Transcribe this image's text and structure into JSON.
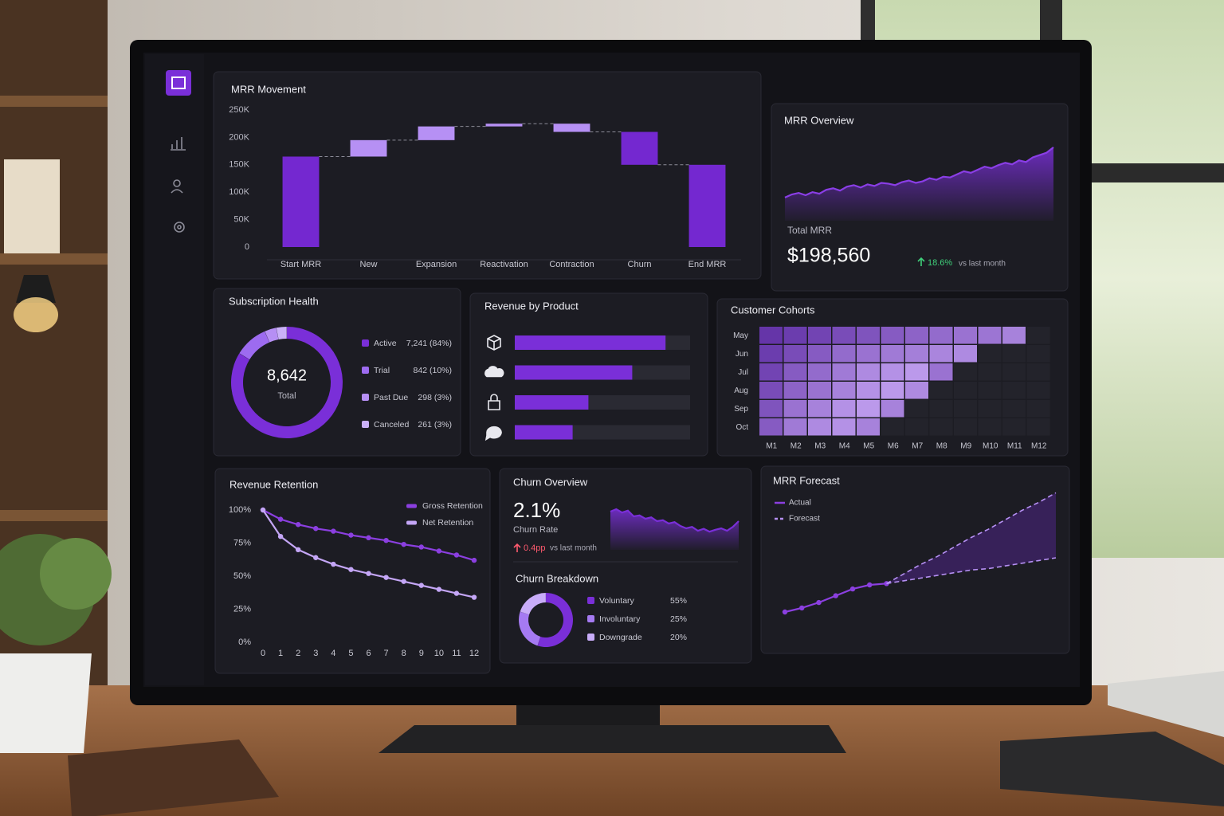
{
  "chart_data": [
    {
      "type": "waterfall",
      "title": "MRR Movement",
      "categories": [
        "Start MRR",
        "New",
        "Expansion",
        "Reactivation",
        "Contraction",
        "Churn",
        "End MRR"
      ],
      "values": [
        165000,
        30000,
        25000,
        5000,
        -15000,
        -60000,
        150000
      ],
      "colors": [
        "#7428d0",
        "#b690f4",
        "#b690f4",
        "#b690f4",
        "#b690f4",
        "#7428d0",
        "#7428d0"
      ],
      "ylim": [
        0,
        250000
      ],
      "yticks": [
        {
          "value": 0,
          "label": "0"
        },
        {
          "value": 50000,
          "label": "50K"
        },
        {
          "value": 100000,
          "label": "100K"
        },
        {
          "value": 150000,
          "label": "150K"
        },
        {
          "value": 200000,
          "label": "200K"
        },
        {
          "value": 250000,
          "label": "250K"
        }
      ]
    },
    {
      "type": "area",
      "title": "MRR Overview",
      "color": "#8a3ee6",
      "values": [
        30,
        34,
        36,
        33,
        37,
        35,
        40,
        42,
        39,
        44,
        46,
        43,
        47,
        45,
        49,
        48,
        46,
        50,
        52,
        49,
        51,
        55,
        53,
        57,
        56,
        60,
        64,
        62,
        66,
        70,
        68,
        72,
        75,
        73,
        78,
        76,
        82,
        85,
        88,
        95
      ],
      "ylim": [
        0,
        100
      ],
      "kpi_label": "Total MRR",
      "kpi": "$198,560",
      "change": "18.6%",
      "change_note": "vs last month"
    },
    {
      "type": "donut",
      "title": "Subscription Health",
      "categories": [
        "Active",
        "Trial",
        "Past Due",
        "Canceled"
      ],
      "values": [
        7241,
        842,
        298,
        261
      ],
      "value_labels": [
        "7,241 (84%)",
        "842 (10%)",
        "298 (3%)",
        "261 (3%)"
      ],
      "colors": [
        "#7a2fd8",
        "#9d6bf0",
        "#b68ff4",
        "#cab1f8"
      ],
      "kpi": "8,642",
      "kpi_label": "Total"
    },
    {
      "type": "hbar",
      "title": "Revenue by Product",
      "color": "#7a2fd8",
      "values": [
        86,
        67,
        42,
        33
      ],
      "xlim": [
        0,
        100
      ]
    },
    {
      "type": "heatmap",
      "title": "Customer Cohorts",
      "rows": [
        "May",
        "Jun",
        "Jul",
        "Aug",
        "Sep",
        "Oct"
      ],
      "columns": [
        "M1",
        "M2",
        "M3",
        "M4",
        "M5",
        "M6",
        "M7",
        "M8",
        "M9",
        "M10",
        "M11",
        "M12"
      ],
      "values": [
        [
          20,
          25,
          30,
          35,
          40,
          45,
          50,
          55,
          60,
          62,
          70,
          null
        ],
        [
          25,
          35,
          45,
          55,
          60,
          65,
          68,
          72,
          75,
          null,
          null,
          null
        ],
        [
          30,
          45,
          55,
          65,
          75,
          80,
          85,
          60,
          null,
          null,
          null,
          null
        ],
        [
          35,
          50,
          60,
          70,
          80,
          85,
          75,
          null,
          null,
          null,
          null,
          null
        ],
        [
          40,
          60,
          70,
          80,
          85,
          70,
          null,
          null,
          null,
          null,
          null,
          null
        ],
        [
          45,
          65,
          75,
          80,
          70,
          null,
          null,
          null,
          null,
          null,
          null,
          null
        ]
      ],
      "zlim": [
        0,
        100
      ],
      "colors": [
        "#4a1694",
        "#cfb0fa"
      ]
    },
    {
      "type": "line",
      "title": "Revenue Retention",
      "x": [
        0,
        1,
        2,
        3,
        4,
        5,
        6,
        7,
        8,
        9,
        10,
        11,
        12
      ],
      "series": [
        {
          "name": "Gross Retention",
          "color": "#8b3fe0",
          "values": [
            100,
            93,
            89,
            86,
            84,
            81,
            79,
            77,
            74,
            72,
            69,
            66,
            62
          ]
        },
        {
          "name": "Net Retention",
          "color": "#c4a6f6",
          "values": [
            100,
            80,
            70,
            64,
            59,
            55,
            52,
            49,
            46,
            43,
            40,
            37,
            34
          ]
        }
      ],
      "xlim": [
        0,
        12
      ],
      "xticks": [
        0,
        1,
        2,
        3,
        4,
        5,
        6,
        7,
        8,
        9,
        10,
        11,
        12
      ],
      "ylim": [
        0,
        100
      ],
      "yticks": [
        {
          "value": 0,
          "label": "0%"
        },
        {
          "value": 25,
          "label": "25%"
        },
        {
          "value": 50,
          "label": "50%"
        },
        {
          "value": 75,
          "label": "75%"
        },
        {
          "value": 100,
          "label": "100%"
        }
      ]
    },
    {
      "type": "area",
      "title": "Churn Overview",
      "color": "#7a2fd8",
      "values": [
        80,
        85,
        78,
        82,
        70,
        72,
        65,
        68,
        60,
        62,
        55,
        58,
        50,
        45,
        48,
        40,
        44,
        38,
        42,
        45,
        40,
        48,
        60
      ],
      "ylim": [
        0,
        100
      ],
      "kpi": "2.1%",
      "kpi_label": "Churn Rate",
      "change": "0.4pp",
      "change_note": "vs last month"
    },
    {
      "type": "donut",
      "title": "Churn Breakdown",
      "categories": [
        "Voluntary",
        "Involuntary",
        "Downgrade"
      ],
      "values": [
        55,
        25,
        20
      ],
      "value_labels": [
        "55%",
        "25%",
        "20%"
      ],
      "colors": [
        "#7a2fd8",
        "#a57af2",
        "#c8acf8"
      ]
    },
    {
      "type": "forecast",
      "title": "MRR Forecast",
      "categories": [
        null,
        null,
        null,
        null,
        null,
        null,
        null,
        null,
        null,
        null,
        null,
        null,
        null,
        null,
        null,
        null,
        null
      ],
      "series": [
        {
          "name": "Actual",
          "color": "#8b3fe0",
          "values": [
            10,
            13,
            17,
            22,
            27,
            30,
            31,
            null,
            null,
            null,
            null,
            null,
            null,
            null,
            null,
            null,
            null
          ]
        },
        {
          "name": "Forecast",
          "color": "#b690f4",
          "dash": true,
          "values": [
            null,
            null,
            null,
            null,
            null,
            null,
            31,
            38,
            45,
            51,
            58,
            65,
            71,
            78,
            85,
            91,
            98
          ],
          "lower": [
            null,
            null,
            null,
            null,
            null,
            null,
            31,
            33,
            35,
            37,
            39,
            41,
            42,
            44,
            46,
            48,
            50
          ]
        }
      ],
      "ylim": [
        0,
        100
      ]
    }
  ]
}
